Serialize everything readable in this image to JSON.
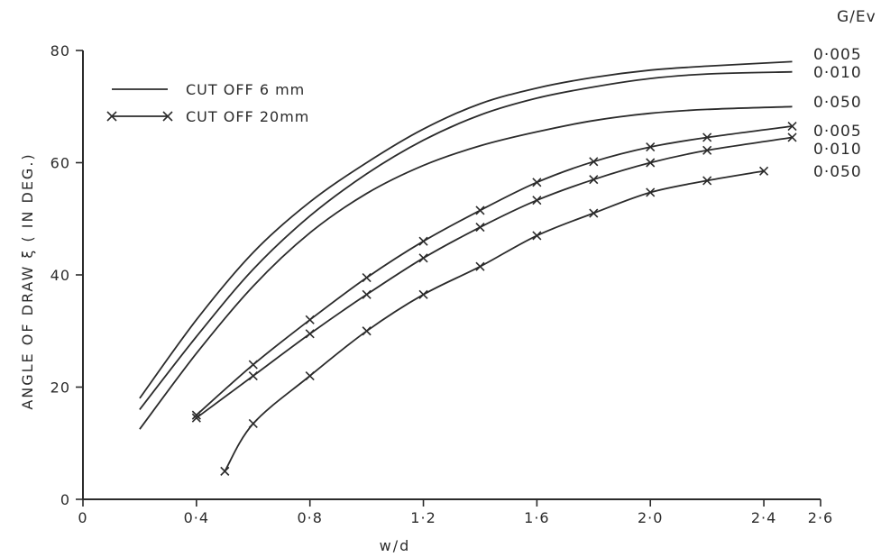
{
  "chart_data": {
    "type": "line",
    "xlabel": "w/d",
    "ylabel": "ANGLE OF DRAW ξ ( IN DEG.)",
    "xlim": [
      0,
      2.6
    ],
    "ylim": [
      0,
      80
    ],
    "x_tick_labels": [
      "0",
      "0·4",
      "0·8",
      "1·2",
      "1·6",
      "2·0",
      "2·4",
      "2·6"
    ],
    "y_tick_labels": [
      "0",
      "20",
      "40",
      "60",
      "80"
    ],
    "legend_header": "G/Ev",
    "legend": [
      {
        "label": "CUT OFF  6 mm",
        "marker": "none"
      },
      {
        "label": "CUT OFF 20mm",
        "marker": "x"
      }
    ],
    "grid": false,
    "series": [
      {
        "group": "CUT OFF  6 mm",
        "label": "0·005",
        "marker": "none",
        "x": [
          0.2,
          0.4,
          0.6,
          0.8,
          1.0,
          1.2,
          1.4,
          1.6,
          1.8,
          2.0,
          2.2,
          2.5
        ],
        "y": [
          18,
          32,
          44,
          53,
          60,
          66,
          70.5,
          73.3,
          75.2,
          76.5,
          77.2,
          78
        ]
      },
      {
        "group": "CUT OFF  6 mm",
        "label": "0·010",
        "marker": "none",
        "x": [
          0.2,
          0.4,
          0.6,
          0.8,
          1.0,
          1.2,
          1.4,
          1.6,
          1.8,
          2.0,
          2.2,
          2.5
        ],
        "y": [
          16,
          29,
          41,
          50.5,
          58,
          64,
          68.5,
          71.5,
          73.5,
          75,
          75.8,
          76.2
        ]
      },
      {
        "group": "CUT OFF  6 mm",
        "label": "0·050",
        "marker": "none",
        "x": [
          0.2,
          0.4,
          0.6,
          0.8,
          1.0,
          1.2,
          1.4,
          1.6,
          1.8,
          2.0,
          2.2,
          2.5
        ],
        "y": [
          12.5,
          26,
          38,
          47.5,
          54.5,
          59.5,
          63,
          65.5,
          67.5,
          68.8,
          69.5,
          70
        ]
      },
      {
        "group": "CUT OFF 20mm",
        "label": "0·005",
        "marker": "x",
        "x": [
          0.4,
          0.6,
          0.8,
          1.0,
          1.2,
          1.4,
          1.6,
          1.8,
          2.0,
          2.2,
          2.5
        ],
        "y": [
          15,
          24,
          32,
          39.5,
          46,
          51.5,
          56.5,
          60.2,
          62.8,
          64.5,
          66.5
        ]
      },
      {
        "group": "CUT OFF 20mm",
        "label": "0·010",
        "marker": "x",
        "x": [
          0.4,
          0.6,
          0.8,
          1.0,
          1.2,
          1.4,
          1.6,
          1.8,
          2.0,
          2.2,
          2.5
        ],
        "y": [
          14.5,
          22,
          29.5,
          36.5,
          43,
          48.5,
          53.3,
          57,
          60,
          62.2,
          64.5
        ]
      },
      {
        "group": "CUT OFF 20mm",
        "label": "0·050",
        "marker": "x",
        "x": [
          0.5,
          0.6,
          0.8,
          1.0,
          1.2,
          1.4,
          1.6,
          1.8,
          2.0,
          2.2,
          2.4
        ],
        "y": [
          5,
          13.5,
          22,
          30,
          36.5,
          41.5,
          47,
          51,
          54.7,
          56.8,
          58.5
        ]
      }
    ]
  }
}
